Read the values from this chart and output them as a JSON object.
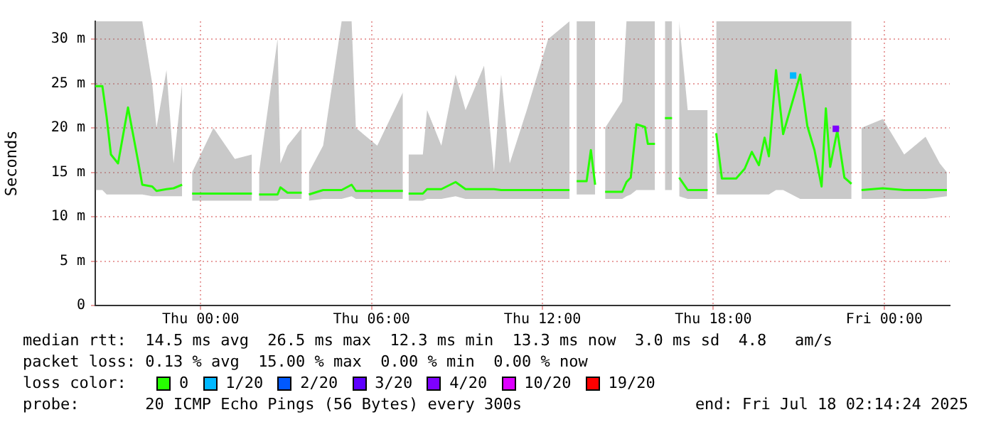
{
  "chart_data": {
    "type": "line",
    "ylabel": "Seconds",
    "legend_title": "loss color:",
    "legend": "bottom",
    "grid": true,
    "marker": "none",
    "line_style": "solid",
    "xlim": [
      "2025-07-16T20:18",
      "2025-07-18T02:18"
    ],
    "ylim": [
      0,
      32
    ],
    "xticks": [
      {
        "value": "2025-07-17T00:00",
        "label": "Thu 00:00"
      },
      {
        "value": "2025-07-17T06:00",
        "label": "Thu 06:00"
      },
      {
        "value": "2025-07-17T12:00",
        "label": "Thu 12:00"
      },
      {
        "value": "2025-07-17T18:00",
        "label": "Thu 18:00"
      },
      {
        "value": "2025-07-18T00:00",
        "label": "Fri 00:00"
      }
    ],
    "yticks": [
      0,
      {
        "value": 5,
        "label": "5 m"
      },
      {
        "value": 10,
        "label": "10 m"
      },
      {
        "value": 15,
        "label": "15 m"
      },
      {
        "value": 20,
        "label": "20 m"
      },
      {
        "value": 25,
        "label": "25 m"
      },
      {
        "value": 30,
        "label": "30 m"
      }
    ],
    "x": [
      "2025-07-16T20:18",
      "2025-07-16T20:33",
      "2025-07-16T20:42",
      "2025-07-16T20:51",
      "2025-07-16T21:06",
      "2025-07-16T21:27",
      "2025-07-16T21:48",
      "2025-07-16T21:57",
      "2025-07-16T22:18",
      "2025-07-16T22:27",
      "2025-07-16T22:48",
      "2025-07-16T23:03",
      "2025-07-16T23:21",
      "2025-07-16T23:33",
      "2025-07-16T23:42",
      "2025-07-17T00:27",
      "2025-07-17T01:12",
      "2025-07-17T01:48",
      "2025-07-17T01:57",
      "2025-07-17T02:03",
      "2025-07-17T02:42",
      "2025-07-17T02:48",
      "2025-07-17T03:03",
      "2025-07-17T03:33",
      "2025-07-17T03:42",
      "2025-07-17T03:48",
      "2025-07-17T04:18",
      "2025-07-17T04:57",
      "2025-07-17T05:18",
      "2025-07-17T05:27",
      "2025-07-17T06:12",
      "2025-07-17T07:06",
      "2025-07-17T07:12",
      "2025-07-17T07:18",
      "2025-07-17T07:48",
      "2025-07-17T07:57",
      "2025-07-17T08:27",
      "2025-07-17T08:57",
      "2025-07-17T09:18",
      "2025-07-17T09:57",
      "2025-07-17T10:18",
      "2025-07-17T10:33",
      "2025-07-17T10:51",
      "2025-07-17T11:27",
      "2025-07-17T12:12",
      "2025-07-17T12:57",
      "2025-07-17T13:03",
      "2025-07-17T13:12",
      "2025-07-17T13:33",
      "2025-07-17T13:42",
      "2025-07-17T13:51",
      "2025-07-17T14:00",
      "2025-07-17T14:12",
      "2025-07-17T14:48",
      "2025-07-17T14:57",
      "2025-07-17T15:06",
      "2025-07-17T15:18",
      "2025-07-17T15:36",
      "2025-07-17T15:42",
      "2025-07-17T15:57",
      "2025-07-17T16:06",
      "2025-07-17T16:18",
      "2025-07-17T16:33",
      "2025-07-17T16:42",
      "2025-07-17T16:48",
      "2025-07-17T17:06",
      "2025-07-17T17:48",
      "2025-07-17T17:57",
      "2025-07-17T18:06",
      "2025-07-17T18:18",
      "2025-07-17T18:48",
      "2025-07-17T19:06",
      "2025-07-17T19:21",
      "2025-07-17T19:36",
      "2025-07-17T19:48",
      "2025-07-17T19:57",
      "2025-07-17T20:12",
      "2025-07-17T20:27",
      "2025-07-17T21:03",
      "2025-07-17T21:18",
      "2025-07-17T21:33",
      "2025-07-17T21:48",
      "2025-07-17T21:57",
      "2025-07-17T22:06",
      "2025-07-17T22:21",
      "2025-07-17T22:36",
      "2025-07-17T22:51",
      "2025-07-17T23:00",
      "2025-07-17T23:12",
      "2025-07-17T23:57",
      "2025-07-18T00:42",
      "2025-07-18T01:27",
      "2025-07-18T01:57",
      "2025-07-18T02:12"
    ],
    "series": [
      {
        "name": "0",
        "color": "#26ff00",
        "values": [
          24.7,
          24.7,
          21.2,
          17.0,
          16.0,
          22.3,
          16.3,
          13.6,
          13.4,
          12.9,
          13.1,
          13.2,
          13.6,
          null,
          12.6,
          12.6,
          12.6,
          12.6,
          null,
          12.5,
          12.5,
          13.3,
          12.7,
          12.7,
          null,
          12.5,
          13.0,
          13.0,
          13.6,
          12.9,
          12.9,
          12.9,
          null,
          12.6,
          12.6,
          13.1,
          13.1,
          13.9,
          13.1,
          13.1,
          13.1,
          13.0,
          13.0,
          13.0,
          13.0,
          13.0,
          null,
          14.0,
          14.0,
          17.5,
          13.6,
          null,
          12.8,
          12.8,
          13.9,
          14.4,
          20.4,
          20.1,
          18.2,
          18.2,
          null,
          21.1,
          21.1,
          null,
          14.4,
          13.0,
          13.0,
          null,
          19.4,
          14.3,
          14.3,
          15.4,
          17.3,
          15.8,
          18.9,
          16.8,
          26.5,
          19.3,
          26.0,
          20.2,
          17.5,
          13.4,
          22.2,
          15.6,
          19.7,
          14.4,
          13.7,
          null,
          13.0,
          13.2,
          13.0,
          13.0,
          13.0,
          13.0
        ],
        "lower": [
          13.0,
          13.0,
          12.5,
          12.5,
          12.5,
          12.5,
          12.5,
          12.5,
          12.3,
          12.3,
          12.3,
          12.3,
          12.3,
          null,
          11.8,
          11.8,
          11.8,
          11.8,
          null,
          11.8,
          11.8,
          12.0,
          12.0,
          12.0,
          null,
          11.8,
          12.0,
          12.0,
          12.3,
          12.0,
          12.0,
          12.0,
          null,
          11.8,
          11.8,
          12.0,
          12.0,
          12.3,
          12.0,
          12.0,
          12.0,
          12.0,
          12.0,
          12.0,
          12.0,
          12.0,
          null,
          12.5,
          12.5,
          12.5,
          12.5,
          null,
          12.0,
          12.0,
          12.3,
          12.5,
          13.0,
          13.0,
          13.0,
          13.0,
          null,
          13.0,
          13.0,
          null,
          12.3,
          12.0,
          12.0,
          null,
          12.5,
          12.5,
          12.5,
          12.5,
          12.5,
          12.5,
          12.5,
          12.5,
          13.0,
          13.0,
          12.0,
          12.0,
          12.0,
          12.0,
          12.0,
          12.0,
          12.0,
          12.0,
          12.0,
          null,
          12.0,
          12.0,
          12.0,
          12.0,
          12.2,
          12.3
        ],
        "upper": [
          32,
          32,
          32,
          32,
          32,
          32,
          32,
          32,
          25,
          20,
          26.5,
          16,
          25,
          null,
          15,
          20,
          16.5,
          17,
          null,
          15,
          30,
          16,
          18,
          20,
          null,
          15,
          18,
          32,
          32,
          20,
          18,
          24,
          null,
          17,
          17,
          22,
          18,
          26,
          22,
          27,
          15,
          26,
          16,
          22,
          30,
          32,
          null,
          32,
          32,
          32,
          32,
          null,
          20,
          23,
          32,
          32,
          32,
          32,
          32,
          32,
          null,
          32,
          32,
          null,
          32,
          22,
          22,
          null,
          32,
          32,
          32,
          32,
          32,
          32,
          32,
          32,
          32,
          32,
          32,
          32,
          32,
          32,
          32,
          32,
          32,
          32,
          32,
          null,
          20,
          21,
          17,
          19,
          16,
          15
        ]
      },
      {
        "name": "1/20",
        "color": "#00b8ff",
        "type": "scatter",
        "marker": "square",
        "x": [
          "2025-07-17T20:48"
        ],
        "values": [
          25.9
        ]
      },
      {
        "name": "2/20",
        "color": "#0059ff",
        "type": "scatter",
        "marker": "square",
        "values": [
          null,
          null,
          null,
          null,
          null,
          null,
          null,
          null,
          null,
          null,
          null,
          null,
          null,
          null,
          null,
          null,
          null,
          null,
          null,
          null,
          null,
          null,
          null,
          null,
          null,
          null,
          null,
          null,
          null,
          null,
          null,
          null,
          null,
          null,
          null,
          null,
          null,
          null,
          null,
          null,
          null,
          null,
          null,
          null,
          null,
          null,
          null,
          null,
          null,
          null,
          null,
          null,
          null,
          null,
          null,
          null,
          null,
          null,
          null,
          null,
          null,
          null,
          null,
          null,
          null,
          null,
          null,
          null,
          null,
          null,
          null,
          null,
          null,
          null,
          null,
          null,
          null,
          null,
          null,
          null,
          null,
          null,
          null,
          null,
          null,
          null,
          null,
          null,
          null,
          null,
          null,
          null,
          null,
          null
        ]
      },
      {
        "name": "3/20",
        "color": "#5e00ff",
        "type": "scatter",
        "marker": "square",
        "values": [
          null,
          null,
          null,
          null,
          null,
          null,
          null,
          null,
          null,
          null,
          null,
          null,
          null,
          null,
          null,
          null,
          null,
          null,
          null,
          null,
          null,
          null,
          null,
          null,
          null,
          null,
          null,
          null,
          null,
          null,
          null,
          null,
          null,
          null,
          null,
          null,
          null,
          null,
          null,
          null,
          null,
          null,
          null,
          null,
          null,
          null,
          null,
          null,
          null,
          null,
          null,
          null,
          null,
          null,
          null,
          null,
          null,
          null,
          null,
          null,
          null,
          null,
          null,
          null,
          null,
          null,
          null,
          null,
          null,
          null,
          null,
          null,
          null,
          null,
          null,
          null,
          null,
          null,
          null,
          null,
          null,
          null,
          null,
          null,
          null,
          null,
          null,
          null,
          null,
          null,
          null,
          null,
          null,
          null
        ]
      },
      {
        "name": "4/20",
        "color": "#7e00ff",
        "type": "scatter",
        "marker": "square",
        "x": [
          "2025-07-17T22:18"
        ],
        "values": [
          19.9
        ]
      },
      {
        "name": "10/20",
        "color": "#dd00ff",
        "type": "scatter",
        "marker": "square",
        "values": [
          null,
          null,
          null,
          null,
          null,
          null,
          null,
          null,
          null,
          null,
          null,
          null,
          null,
          null,
          null,
          null,
          null,
          null,
          null,
          null,
          null,
          null,
          null,
          null,
          null,
          null,
          null,
          null,
          null,
          null,
          null,
          null,
          null,
          null,
          null,
          null,
          null,
          null,
          null,
          null,
          null,
          null,
          null,
          null,
          null,
          null,
          null,
          null,
          null,
          null,
          null,
          null,
          null,
          null,
          null,
          null,
          null,
          null,
          null,
          null,
          null,
          null,
          null,
          null,
          null,
          null,
          null,
          null,
          null,
          null,
          null,
          null,
          null,
          null,
          null,
          null,
          null,
          null,
          null,
          null,
          null,
          null,
          null,
          null,
          null,
          null,
          null,
          null,
          null,
          null,
          null,
          null,
          null,
          null
        ]
      },
      {
        "name": "19/20",
        "color": "#ff0000",
        "type": "scatter",
        "marker": "square",
        "values": [
          null,
          null,
          null,
          null,
          null,
          null,
          null,
          null,
          null,
          null,
          null,
          null,
          null,
          null,
          null,
          null,
          null,
          null,
          null,
          null,
          null,
          null,
          null,
          null,
          null,
          null,
          null,
          null,
          null,
          null,
          null,
          null,
          null,
          null,
          null,
          null,
          null,
          null,
          null,
          null,
          null,
          null,
          null,
          null,
          null,
          null,
          null,
          null,
          null,
          null,
          null,
          null,
          null,
          null,
          null,
          null,
          null,
          null,
          null,
          null,
          null,
          null,
          null,
          null,
          null,
          null,
          null,
          null,
          null,
          null,
          null,
          null,
          null,
          null,
          null,
          null,
          null,
          null,
          null,
          null,
          null,
          null,
          null,
          null,
          null,
          null,
          null,
          null,
          null,
          null,
          null,
          null,
          null,
          null
        ]
      }
    ],
    "annotations": [
      "median rtt:  14.5 ms avg  26.5 ms max  12.3 ms min  13.3 ms now  3.0 ms sd  4.8   am/s",
      "packet loss: 0.13 % avg  15.00 % max  0.00 % min  0.00 % now",
      "probe:       20 ICMP Echo Pings (56 Bytes) every 300s",
      "end: Fri Jul 18 02:14:24 2025"
    ]
  }
}
